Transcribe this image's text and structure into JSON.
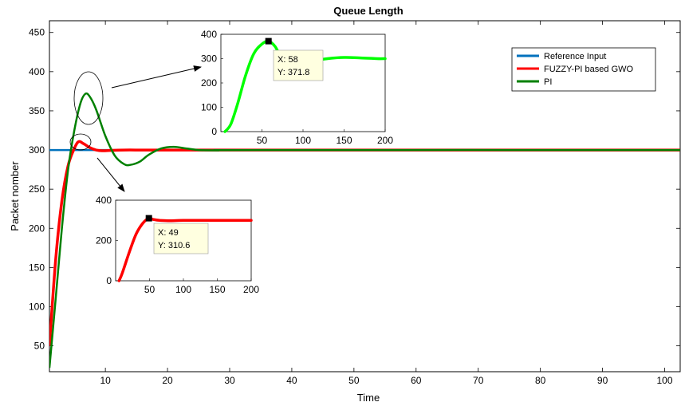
{
  "chart_data": [
    {
      "type": "line",
      "title": "Queue Length",
      "xlabel": "Time",
      "ylabel": "Packet nomber",
      "xlim": [
        1,
        102.5
      ],
      "ylim": [
        17,
        465
      ],
      "xticks": [
        10,
        20,
        30,
        40,
        50,
        60,
        70,
        80,
        90,
        100
      ],
      "yticks": [
        50,
        100,
        150,
        200,
        250,
        300,
        350,
        400,
        450
      ],
      "grid": false,
      "legend_position": "top-right",
      "series": [
        {
          "name": "Reference Input",
          "color": "#0072bd",
          "x": [
            1,
            102.5
          ],
          "y": [
            300,
            300
          ]
        },
        {
          "name": "FUZZY-PI based GWO",
          "color": "#ff0000",
          "x": [
            1,
            2,
            3,
            4,
            5,
            5.7,
            6.5,
            7.5,
            8.5,
            9.5,
            11,
            13,
            16,
            20,
            30,
            102.5
          ],
          "y": [
            50,
            160,
            235,
            280,
            302,
            310.6,
            308,
            303,
            300,
            299,
            299.5,
            300,
            300,
            300,
            300,
            300
          ]
        },
        {
          "name": "PI",
          "color": "#008000",
          "x": [
            1,
            2,
            3,
            4,
            5,
            6,
            6.8,
            7.5,
            8.5,
            10,
            11.5,
            13,
            14,
            15.5,
            17,
            19,
            21,
            23,
            25,
            28,
            35,
            102.5
          ],
          "y": [
            22,
            110,
            200,
            275,
            325,
            360,
            371.8,
            368,
            352,
            318,
            293,
            282,
            281,
            285,
            294,
            302,
            304,
            302,
            300,
            299.5,
            300,
            300
          ]
        }
      ],
      "annotations": [
        {
          "text": "",
          "shape": "ellipse",
          "x": 7.2,
          "y": 366
        },
        {
          "text": "",
          "shape": "ellipse",
          "x": 5.7,
          "y": 309
        }
      ]
    },
    {
      "type": "line",
      "role": "inset-upper",
      "xlim": [
        0,
        200
      ],
      "ylim": [
        0,
        400
      ],
      "xticks": [
        50,
        100,
        150,
        200
      ],
      "yticks": [
        0,
        100,
        200,
        300,
        400
      ],
      "series": [
        {
          "color": "#00ff00",
          "x": [
            5,
            12,
            20,
            30,
            40,
            50,
            58,
            66,
            75,
            90,
            110,
            130,
            150,
            170,
            190,
            200
          ],
          "y": [
            0,
            30,
            110,
            230,
            320,
            360,
            371.8,
            350,
            300,
            285,
            290,
            300,
            305,
            303,
            300,
            300
          ]
        }
      ],
      "datatip": {
        "x": 58,
        "y": 371.8,
        "label_x": "X: 58",
        "label_y": "Y: 371.8"
      }
    },
    {
      "type": "line",
      "role": "inset-lower",
      "xlim": [
        0,
        200
      ],
      "ylim": [
        0,
        400
      ],
      "xticks": [
        50,
        100,
        150,
        200
      ],
      "yticks": [
        0,
        200,
        400
      ],
      "series": [
        {
          "color": "#ff0000",
          "x": [
            5,
            10,
            20,
            30,
            40,
            49,
            55,
            65,
            80,
            100,
            150,
            200
          ],
          "y": [
            0,
            40,
            140,
            230,
            285,
            310.6,
            305,
            300,
            298,
            300,
            300,
            300
          ]
        }
      ],
      "datatip": {
        "x": 49,
        "y": 310.6,
        "label_x": "X: 49",
        "label_y": "Y: 310.6"
      }
    }
  ]
}
